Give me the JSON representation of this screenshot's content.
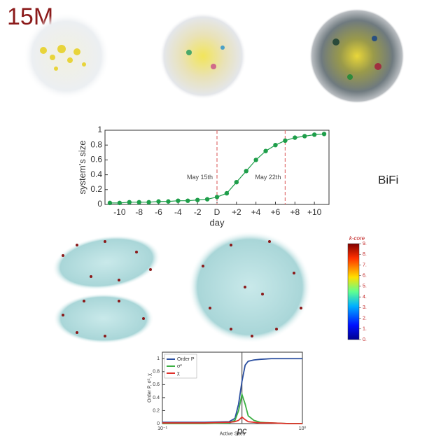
{
  "header": {
    "title": "15M"
  },
  "side_label": "BiFi",
  "colorbar": {
    "title": "k-core",
    "ticks": [
      {
        "value": 0,
        "label": "0."
      },
      {
        "value": 1,
        "label": "1."
      },
      {
        "value": 2,
        "label": "2."
      },
      {
        "value": 3,
        "label": "3."
      },
      {
        "value": 4,
        "label": "4."
      },
      {
        "value": 5,
        "label": "5."
      },
      {
        "value": 6,
        "label": "6."
      },
      {
        "value": 7,
        "label": "7."
      },
      {
        "value": 8,
        "label": "8."
      },
      {
        "value": 9,
        "label": "9."
      }
    ],
    "lim": [
      0,
      9
    ]
  },
  "chart_data": [
    {
      "type": "line",
      "markers": true,
      "xlabel": "day",
      "ylabel": "system's size",
      "x": [
        -11,
        -10,
        -9,
        -8,
        -7,
        -6,
        -5,
        -4,
        -3,
        -2,
        -1,
        0,
        1,
        2,
        3,
        4,
        5,
        6,
        7,
        8,
        9,
        10,
        11
      ],
      "values": [
        0.02,
        0.02,
        0.03,
        0.03,
        0.03,
        0.04,
        0.04,
        0.05,
        0.05,
        0.06,
        0.07,
        0.1,
        0.15,
        0.3,
        0.45,
        0.6,
        0.72,
        0.8,
        0.86,
        0.9,
        0.92,
        0.94,
        0.95
      ],
      "color": "#1e9e4a",
      "xlim": [
        -11.5,
        11.5
      ],
      "xticks": [
        -10,
        -8,
        -6,
        -4,
        -2,
        {
          "value": 0,
          "label": "D"
        },
        {
          "value": 2,
          "label": "+2"
        },
        {
          "value": 4,
          "label": "+4"
        },
        {
          "value": 6,
          "label": "+6"
        },
        {
          "value": 8,
          "label": "+8"
        },
        {
          "value": 10,
          "label": "+10"
        }
      ],
      "ylim": [
        0,
        1
      ],
      "yticks": [
        0,
        0.2,
        0.4,
        0.6,
        0.8,
        1
      ],
      "vlines": [
        0,
        7
      ],
      "vline_color": "#e07070",
      "annotations": [
        "May 15th",
        "May 22th"
      ]
    },
    {
      "type": "line",
      "xscale": "log",
      "xlabel": "Active Sites",
      "ylabel": "Order P, σ², χ",
      "x": [
        0.1,
        0.2,
        0.3,
        0.33,
        0.35,
        0.37,
        0.39,
        0.41,
        0.45,
        0.5,
        0.6,
        0.8,
        1.0
      ],
      "series": [
        {
          "name": "Order P",
          "color": "#2b4fa0",
          "values": [
            0.02,
            0.02,
            0.03,
            0.08,
            0.3,
            0.65,
            0.9,
            0.96,
            0.98,
            0.99,
            1,
            1,
            1
          ]
        },
        {
          "name": "σ²",
          "color": "#3cb043",
          "values": [
            0,
            0,
            0.01,
            0.05,
            0.2,
            0.45,
            0.3,
            0.12,
            0.05,
            0.02,
            0.01,
            0,
            0
          ]
        },
        {
          "name": "χ",
          "color": "#e0302a",
          "values": [
            0.01,
            0.01,
            0.02,
            0.03,
            0.05,
            0.1,
            0.06,
            0.03,
            0.02,
            0.01,
            0.01,
            0,
            0
          ]
        }
      ],
      "xlim": [
        0.1,
        1
      ],
      "xticks": [
        {
          "value": 0.1,
          "label": "10⁻¹"
        },
        {
          "value": 1,
          "label": "10⁰"
        }
      ],
      "ylim": [
        0,
        1.1
      ],
      "yticks": [
        0,
        0.2,
        0.4,
        0.6,
        0.8,
        1
      ],
      "vlines": [
        0.37
      ],
      "vline_color": "#555",
      "annotations": [
        "pc"
      ],
      "legend": "upper left"
    }
  ]
}
